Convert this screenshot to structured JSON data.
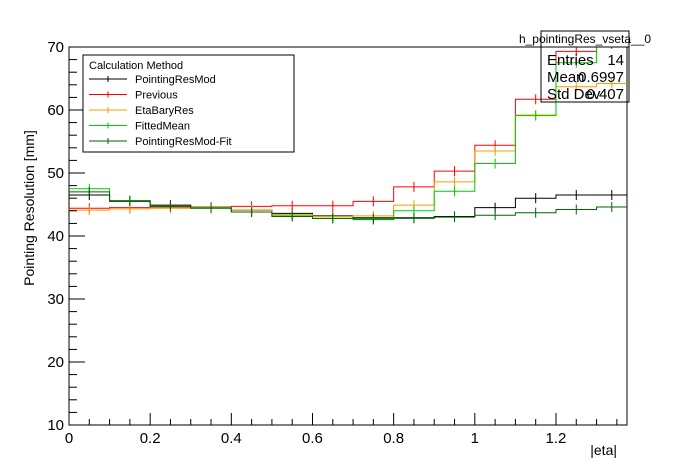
{
  "chart_data": {
    "type": "line",
    "title": "",
    "xlabel": "|eta|",
    "ylabel": "Pointing Resolution [mm]",
    "xlim": [
      0,
      1.375
    ],
    "ylim": [
      10,
      70
    ],
    "xticks": [
      0,
      0.2,
      0.4,
      0.6,
      0.8,
      1,
      1.2
    ],
    "xtick_labels": [
      "0",
      "0.2",
      "0.4",
      "0.6",
      "0.8",
      "1",
      "1.2"
    ],
    "yticks": [
      10,
      20,
      30,
      40,
      50,
      60,
      70
    ],
    "ytick_labels": [
      "10",
      "20",
      "30",
      "40",
      "50",
      "60",
      "70"
    ],
    "bin_edges": [
      0,
      0.1,
      0.2,
      0.3,
      0.4,
      0.5,
      0.6,
      0.7,
      0.8,
      0.9,
      1.0,
      1.1,
      1.2,
      1.3,
      1.375
    ],
    "series": [
      {
        "name": "PointingResMod",
        "color": "#000000",
        "values": [
          46.5,
          45.5,
          44.9,
          44.6,
          44.1,
          43.6,
          43.2,
          42.9,
          42.9,
          43.1,
          44.5,
          46.0,
          46.5,
          46.5
        ]
      },
      {
        "name": "Previous",
        "color": "#ff0000",
        "values": [
          44.4,
          44.5,
          44.6,
          44.6,
          44.7,
          44.8,
          44.8,
          45.5,
          47.8,
          50.3,
          54.4,
          61.7,
          69.3,
          70.5
        ]
      },
      {
        "name": "EtaBaryRes",
        "color": "#ff9900",
        "values": [
          44.1,
          44.3,
          44.4,
          44.5,
          44.1,
          43.4,
          43.1,
          43.2,
          44.9,
          48.6,
          53.5,
          59.2,
          63.7,
          64.2
        ]
      },
      {
        "name": "FittedMean",
        "color": "#00cc00",
        "values": [
          47.5,
          45.6,
          44.7,
          44.5,
          43.8,
          43.2,
          42.8,
          42.6,
          44.0,
          47.1,
          51.5,
          59.1,
          67.5,
          70.5
        ]
      },
      {
        "name": "PointingResMod-Fit",
        "color": "#006600",
        "values": [
          47.0,
          45.6,
          44.7,
          44.4,
          43.8,
          43.1,
          42.8,
          42.7,
          42.8,
          43.0,
          43.3,
          43.7,
          44.2,
          44.6
        ]
      }
    ],
    "legend": {
      "title": "Calculation Method",
      "position": "top-left"
    },
    "stats": {
      "title": "h_pointingRes_vseta__0",
      "rows": [
        {
          "label": "Entries",
          "value": "14"
        },
        {
          "label": "Mean",
          "value": "0.6997"
        },
        {
          "label": "Std Dev",
          "value": "0.407"
        }
      ]
    }
  }
}
